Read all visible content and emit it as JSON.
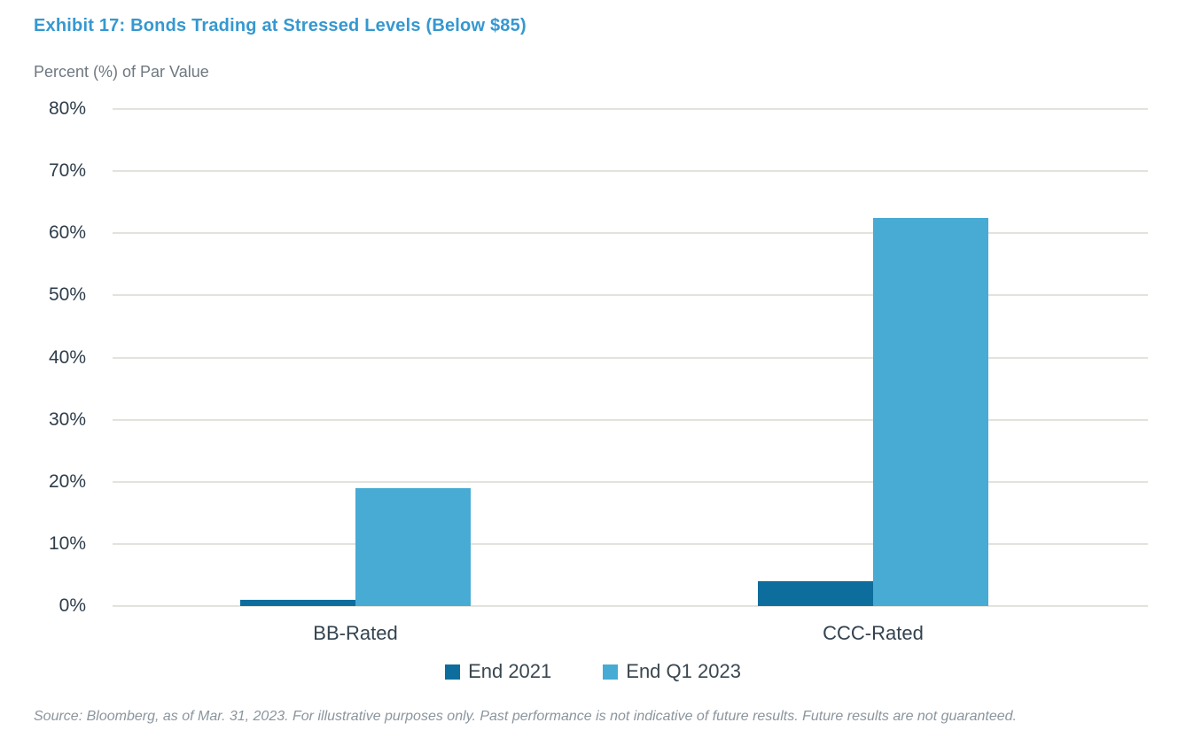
{
  "header": {
    "title": "Exhibit 17: Bonds Trading at Stressed Levels (Below $85)",
    "subtitle": "Percent (%) of Par Value"
  },
  "chart_data": {
    "type": "bar",
    "title": "Exhibit 17: Bonds Trading at Stressed Levels (Below $85)",
    "ylabel": "Percent (%) of Par Value",
    "xlabel": "",
    "categories": [
      "BB-Rated",
      "CCC-Rated"
    ],
    "series": [
      {
        "name": "End 2021",
        "color": "#0d6e9d",
        "values": [
          1,
          4
        ]
      },
      {
        "name": "End Q1 2023",
        "color": "#47abd4",
        "values": [
          19,
          62.5
        ]
      }
    ],
    "ylim": [
      0,
      80
    ],
    "yticks": [
      0,
      10,
      20,
      30,
      40,
      50,
      60,
      70,
      80
    ],
    "ytick_labels": [
      "0%",
      "10%",
      "20%",
      "30%",
      "40%",
      "50%",
      "60%",
      "70%",
      "80%"
    ],
    "grid": "horizontal",
    "legend_position": "bottom-center"
  },
  "source": {
    "text": "Source: Bloomberg, as of Mar. 31, 2023. For illustrative purposes only. Past performance is not indicative of future results. Future results are not guaranteed."
  }
}
